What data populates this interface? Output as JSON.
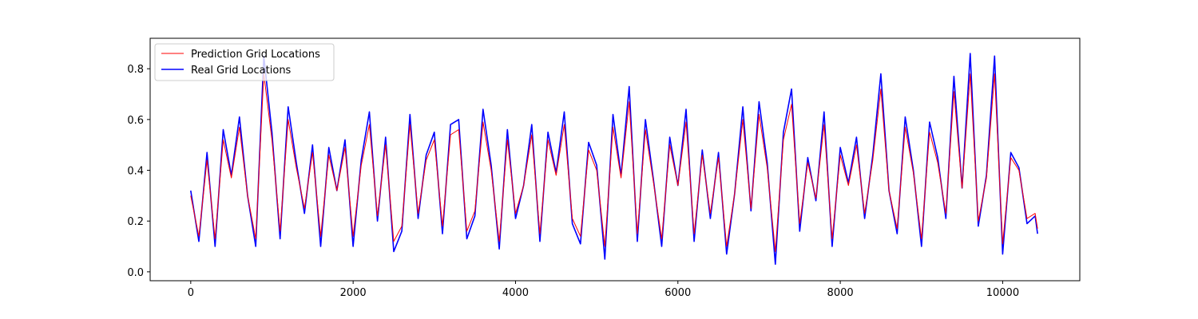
{
  "chart_data": {
    "type": "line",
    "title": "",
    "xlabel": "",
    "ylabel": "",
    "xlim": [
      -500,
      10950
    ],
    "ylim": [
      -0.035,
      0.92
    ],
    "grid": false,
    "legend_position": "top-left",
    "x_ticks": [
      {
        "value": 0,
        "label": "0"
      },
      {
        "value": 2000,
        "label": "2000"
      },
      {
        "value": 4000,
        "label": "4000"
      },
      {
        "value": 6000,
        "label": "6000"
      },
      {
        "value": 8000,
        "label": "8000"
      },
      {
        "value": 10000,
        "label": "10000"
      }
    ],
    "y_ticks": [
      {
        "value": 0.0,
        "label": "0.0"
      },
      {
        "value": 0.2,
        "label": "0.2"
      },
      {
        "value": 0.4,
        "label": "0.4"
      },
      {
        "value": 0.6,
        "label": "0.6"
      },
      {
        "value": 0.8,
        "label": "0.8"
      }
    ],
    "x": [
      0,
      100,
      200,
      300,
      400,
      500,
      600,
      700,
      800,
      900,
      1000,
      1100,
      1200,
      1300,
      1400,
      1500,
      1600,
      1700,
      1800,
      1900,
      2000,
      2100,
      2200,
      2300,
      2400,
      2500,
      2600,
      2700,
      2800,
      2900,
      3000,
      3100,
      3200,
      3300,
      3400,
      3500,
      3600,
      3700,
      3800,
      3900,
      4000,
      4100,
      4200,
      4300,
      4400,
      4500,
      4600,
      4700,
      4800,
      4900,
      5000,
      5100,
      5200,
      5300,
      5400,
      5500,
      5600,
      5700,
      5800,
      5900,
      6000,
      6100,
      6200,
      6300,
      6400,
      6500,
      6600,
      6700,
      6800,
      6900,
      7000,
      7100,
      7200,
      7300,
      7400,
      7500,
      7600,
      7700,
      7800,
      7900,
      8000,
      8100,
      8200,
      8300,
      8400,
      8500,
      8600,
      8700,
      8800,
      8900,
      9000,
      9100,
      9200,
      9300,
      9400,
      9500,
      9600,
      9700,
      9800,
      9900,
      10000,
      10100,
      10200,
      10300,
      10400,
      10430
    ],
    "series": [
      {
        "name": "Real Grid Locations",
        "color": "#0000ff",
        "values": [
          0.32,
          0.12,
          0.47,
          0.1,
          0.56,
          0.38,
          0.61,
          0.3,
          0.1,
          0.85,
          0.55,
          0.13,
          0.65,
          0.43,
          0.23,
          0.5,
          0.1,
          0.49,
          0.32,
          0.52,
          0.1,
          0.44,
          0.63,
          0.2,
          0.53,
          0.08,
          0.16,
          0.62,
          0.21,
          0.46,
          0.55,
          0.15,
          0.58,
          0.6,
          0.13,
          0.22,
          0.64,
          0.42,
          0.09,
          0.56,
          0.21,
          0.34,
          0.58,
          0.12,
          0.55,
          0.39,
          0.63,
          0.19,
          0.11,
          0.51,
          0.42,
          0.05,
          0.62,
          0.38,
          0.73,
          0.12,
          0.6,
          0.36,
          0.1,
          0.53,
          0.34,
          0.64,
          0.12,
          0.48,
          0.21,
          0.47,
          0.07,
          0.31,
          0.65,
          0.24,
          0.67,
          0.43,
          0.03,
          0.55,
          0.72,
          0.16,
          0.45,
          0.28,
          0.63,
          0.1,
          0.49,
          0.35,
          0.53,
          0.21,
          0.46,
          0.78,
          0.32,
          0.15,
          0.61,
          0.4,
          0.1,
          0.59,
          0.45,
          0.21,
          0.77,
          0.33,
          0.86,
          0.18,
          0.38,
          0.85,
          0.07,
          0.47,
          0.41,
          0.19,
          0.22,
          0.15
        ]
      },
      {
        "name": "Prediction Grid Locations",
        "color": "#ff0000",
        "values": [
          0.3,
          0.14,
          0.44,
          0.13,
          0.52,
          0.37,
          0.57,
          0.3,
          0.13,
          0.78,
          0.52,
          0.16,
          0.6,
          0.41,
          0.25,
          0.47,
          0.14,
          0.46,
          0.32,
          0.49,
          0.14,
          0.42,
          0.58,
          0.22,
          0.5,
          0.12,
          0.18,
          0.58,
          0.23,
          0.44,
          0.52,
          0.18,
          0.54,
          0.56,
          0.16,
          0.24,
          0.59,
          0.4,
          0.12,
          0.52,
          0.23,
          0.34,
          0.54,
          0.15,
          0.52,
          0.38,
          0.58,
          0.21,
          0.14,
          0.48,
          0.4,
          0.1,
          0.57,
          0.37,
          0.67,
          0.15,
          0.56,
          0.35,
          0.13,
          0.5,
          0.34,
          0.59,
          0.15,
          0.46,
          0.23,
          0.45,
          0.1,
          0.31,
          0.6,
          0.25,
          0.62,
          0.41,
          0.08,
          0.52,
          0.66,
          0.19,
          0.43,
          0.29,
          0.58,
          0.13,
          0.46,
          0.34,
          0.5,
          0.23,
          0.44,
          0.72,
          0.32,
          0.17,
          0.57,
          0.39,
          0.13,
          0.55,
          0.43,
          0.23,
          0.71,
          0.33,
          0.78,
          0.2,
          0.37,
          0.78,
          0.11,
          0.45,
          0.4,
          0.21,
          0.23,
          0.17
        ]
      }
    ],
    "legend": [
      {
        "label": "Prediction Grid Locations",
        "color": "#ff0000"
      },
      {
        "label": "Real Grid Locations",
        "color": "#0000ff"
      }
    ]
  }
}
